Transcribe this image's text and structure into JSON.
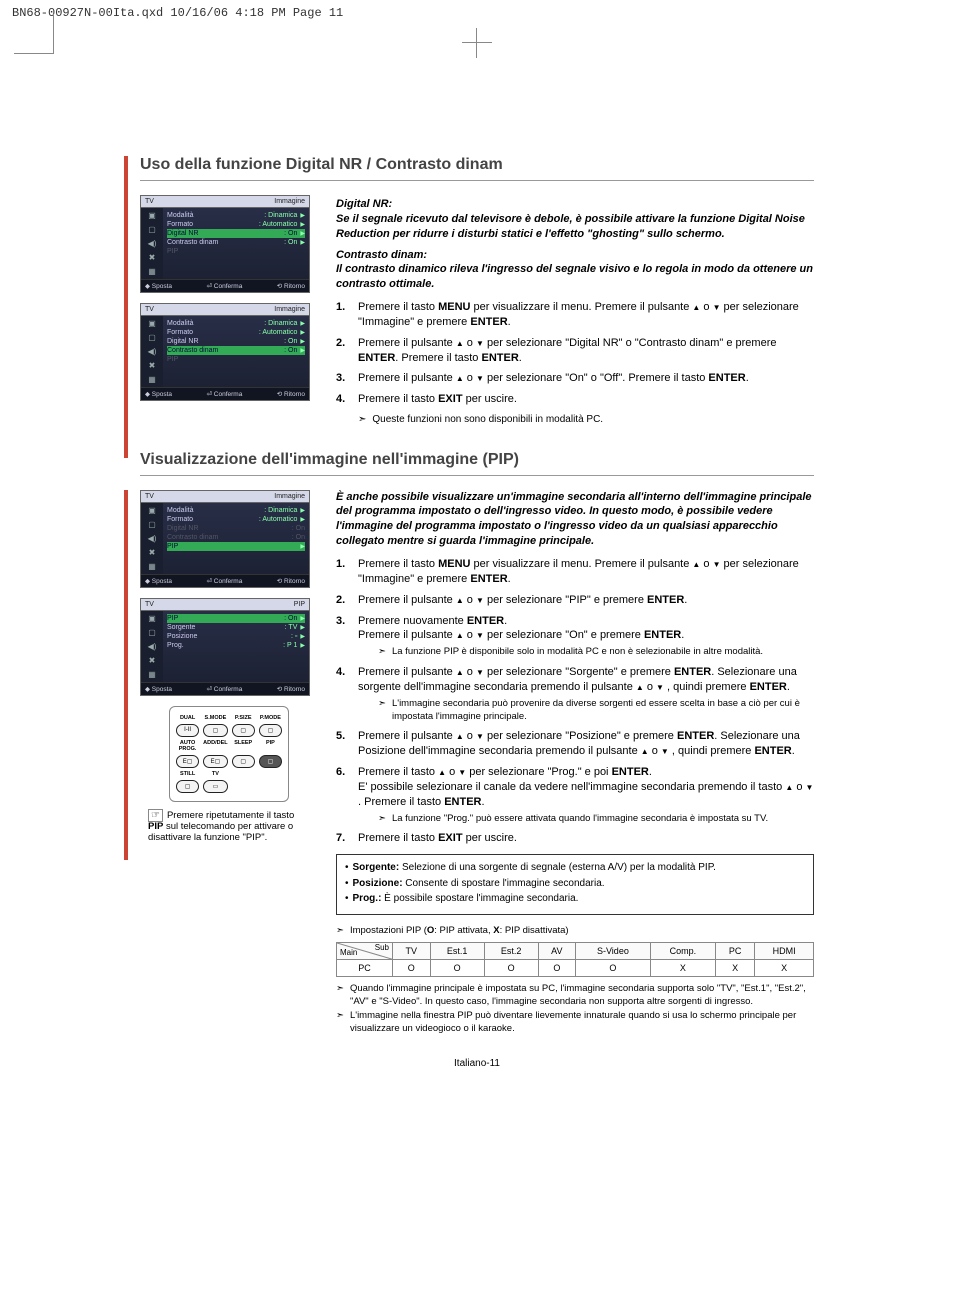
{
  "header": "BN68-00927N-00Ita.qxd  10/16/06  4:18 PM  Page 11",
  "section1": {
    "title": "Uso della funzione Digital NR / Contrasto dinam",
    "digitalNR": {
      "label": "Digital NR:",
      "text": "Se il segnale ricevuto dal televisore è debole, è possibile attivare la funzione Digital Noise Reduction per ridurre i disturbi statici e l'effetto \"ghosting\" sullo schermo."
    },
    "contrasto": {
      "label": "Contrasto dinam:",
      "text": "Il contrasto dinamico rileva l'ingresso del segnale visivo e lo regola in modo da ottenere un contrasto ottimale."
    },
    "steps": [
      {
        "n": "1.",
        "t": "Premere il tasto <b>MENU</b> per visualizzare il menu. Premere il pulsante <span class='arrow-up'></span> o <span class='arrow-dn'></span> per selezionare \"Immagine\" e premere <b>ENTER</b>."
      },
      {
        "n": "2.",
        "t": "Premere il pulsante <span class='arrow-up'></span> o <span class='arrow-dn'></span> per selezionare \"Digital NR\" o \"Contrasto dinam\" e premere <b>ENTER</b>. Premere il tasto <b>ENTER</b>."
      },
      {
        "n": "3.",
        "t": "Premere il pulsante <span class='arrow-up'></span> o <span class='arrow-dn'></span> per selezionare \"On\" o \"Off\". Premere il tasto <b>ENTER</b>."
      },
      {
        "n": "4.",
        "t": "Premere il tasto <b>EXIT</b> per uscire."
      }
    ],
    "note": "Queste funzioni non sono disponibili in modalità PC.",
    "menu1": {
      "topL": "TV",
      "topR": "Immagine",
      "rows": [
        {
          "l": "Modalità",
          "v": ": Dinamica",
          "arr": true
        },
        {
          "l": "Formato",
          "v": ": Automatico",
          "arr": true
        },
        {
          "l": "Digital NR",
          "v": ": On",
          "arr": true,
          "hl": true
        },
        {
          "l": "Contrasto dinam",
          "v": ": On",
          "arr": true
        },
        {
          "l": "PIP",
          "v": "",
          "dim": true
        }
      ],
      "foot": [
        "◆ Sposta",
        "⏎ Conferma",
        "⟲ Ritorno"
      ]
    },
    "menu2": {
      "topL": "TV",
      "topR": "Immagine",
      "rows": [
        {
          "l": "Modalità",
          "v": ": Dinamica",
          "arr": true
        },
        {
          "l": "Formato",
          "v": ": Automatico",
          "arr": true
        },
        {
          "l": "Digital NR",
          "v": ": On",
          "arr": true
        },
        {
          "l": "Contrasto dinam",
          "v": ": On",
          "arr": true,
          "hl": true
        },
        {
          "l": "PIP",
          "v": "",
          "dim": true
        }
      ],
      "foot": [
        "◆ Sposta",
        "⏎ Conferma",
        "⟲ Ritorno"
      ]
    }
  },
  "section2": {
    "title": "Visualizzazione dell'immagine nell'immagine (PIP)",
    "intro": "È anche possibile visualizzare un'immagine secondaria all'interno dell'immagine principale del programma impostato o dell'ingresso video. In questo modo, è possibile vedere l'immagine del programma impostato o l'ingresso video da un qualsiasi apparecchio collegato mentre si guarda l'immagine principale.",
    "steps": [
      {
        "n": "1.",
        "t": "Premere il tasto <b>MENU</b> per visualizzare il menu. Premere il pulsante <span class='arrow-up'></span> o <span class='arrow-dn'></span> per selezionare \"Immagine\" e premere <b>ENTER</b>."
      },
      {
        "n": "2.",
        "t": "Premere il pulsante <span class='arrow-up'></span> o <span class='arrow-dn'></span> per selezionare \"PIP\" e premere <b>ENTER</b>."
      },
      {
        "n": "3.",
        "t": "Premere nuovamente <b>ENTER</b>.<br>Premere il pulsante <span class='arrow-up'></span> o <span class='arrow-dn'></span> per selezionare \"On\" e premere <b>ENTER</b>.",
        "sub": "La funzione PIP è disponibile solo in modalità PC e non è selezionabile in altre modalità."
      },
      {
        "n": "4.",
        "t": "Premere il pulsante <span class='arrow-up'></span> o <span class='arrow-dn'></span> per selezionare \"Sorgente\" e premere <b>ENTER</b>. Selezionare una sorgente dell'immagine secondaria premendo il pulsante <span class='arrow-up'></span> o <span class='arrow-dn'></span> , quindi premere <b>ENTER</b>.",
        "sub": "L'immagine secondaria può provenire da diverse sorgenti ed essere scelta in base a ciò per cui è impostata l'immagine principale."
      },
      {
        "n": "5.",
        "t": "Premere il pulsante <span class='arrow-up'></span> o <span class='arrow-dn'></span> per selezionare \"Posizione\" e premere <b>ENTER</b>. Selezionare una Posizione dell'immagine secondaria premendo il pulsante <span class='arrow-up'></span> o <span class='arrow-dn'></span> , quindi premere <b>ENTER</b>."
      },
      {
        "n": "6.",
        "t": "Premere il tasto <span class='arrow-up'></span> o <span class='arrow-dn'></span> per selezionare \"Prog.\" e poi <b>ENTER</b>.<br>E' possibile selezionare il canale da vedere nell'immagine secondaria premendo il tasto <span class='arrow-up'></span> o <span class='arrow-dn'></span> . Premere il tasto <b>ENTER</b>.",
        "sub": "La funzione \"Prog.\" può essere attivata quando l'immagine secondaria è impostata su TV."
      },
      {
        "n": "7.",
        "t": "Premere il tasto <b>EXIT</b> per uscire."
      }
    ],
    "menu3": {
      "topL": "TV",
      "topR": "Immagine",
      "rows": [
        {
          "l": "Modalità",
          "v": ": Dinamica",
          "arr": true
        },
        {
          "l": "Formato",
          "v": ": Automatico",
          "arr": true
        },
        {
          "l": "Digital NR",
          "v": ": On",
          "dim": true
        },
        {
          "l": "Contrasto dinam",
          "v": ": On",
          "dim": true
        },
        {
          "l": "PIP",
          "v": "",
          "arr": true,
          "hl": true
        }
      ],
      "foot": [
        "◆ Sposta",
        "⏎ Conferma",
        "⟲ Ritorno"
      ]
    },
    "menu4": {
      "topL": "TV",
      "topR": "PIP",
      "rows": [
        {
          "l": "PIP",
          "v": ": On",
          "arr": true,
          "hl": true
        },
        {
          "l": "Sorgente",
          "v": ": TV",
          "arr": true
        },
        {
          "l": "Posizione",
          "v": ": ▫",
          "arr": true
        },
        {
          "l": "Prog.",
          "v": ": P    1",
          "arr": true
        }
      ],
      "foot": [
        "◆ Sposta",
        "⏎ Conferma",
        "⟲ Ritorno"
      ]
    },
    "remote": {
      "labels": [
        "DUAL",
        "S.MODE",
        "P.SIZE",
        "P.MODE",
        "AUTO PROG.",
        "ADD/DEL",
        "SLEEP",
        "PIP",
        "STILL",
        "TV"
      ],
      "btns": [
        "I-II",
        "▢",
        "▢",
        "▢",
        "E▢",
        "E▢",
        "▢",
        "▢",
        "▢",
        "▭"
      ]
    },
    "remoteCaption": "Premere ripetutamente il tasto <b>PIP</b> sul telecomando per attivare o disattivare la funzione \"PIP\".",
    "infoBox": [
      "<b>Sorgente:</b> Selezione di una sorgente di segnale (esterna A/V) per la modalità PIP.",
      "<b>Posizione:</b> Consente di spostare l'immagine secondaria.",
      "<b>Prog.:</b> È possibile spostare l'immagine secondaria."
    ],
    "tableCaption": "Impostazioni PIP (<b>O</b>: PIP attivata, <b>X</b>: PIP disattivata)",
    "table": {
      "corner": [
        "Main",
        "Sub"
      ],
      "headers": [
        "TV",
        "Est.1",
        "Est.2",
        "AV",
        "S-Video",
        "Comp.",
        "PC",
        "HDMI"
      ],
      "rowLabel": "PC",
      "cells": [
        "O",
        "O",
        "O",
        "O",
        "O",
        "X",
        "X",
        "X"
      ]
    },
    "finalNotes": [
      "Quando l'immagine principale è impostata su PC, l'immagine secondaria supporta solo \"TV\", \"Est.1\", \"Est.2\", \"AV\" e \"S-Video\". In questo caso, l'immagine secondaria non supporta altre sorgenti di ingresso.",
      "L'immagine nella finestra PIP può diventare lievemente innaturale quando si usa lo schermo principale per visualizzare un videogioco o il karaoke."
    ]
  },
  "footer": "Italiano-11"
}
